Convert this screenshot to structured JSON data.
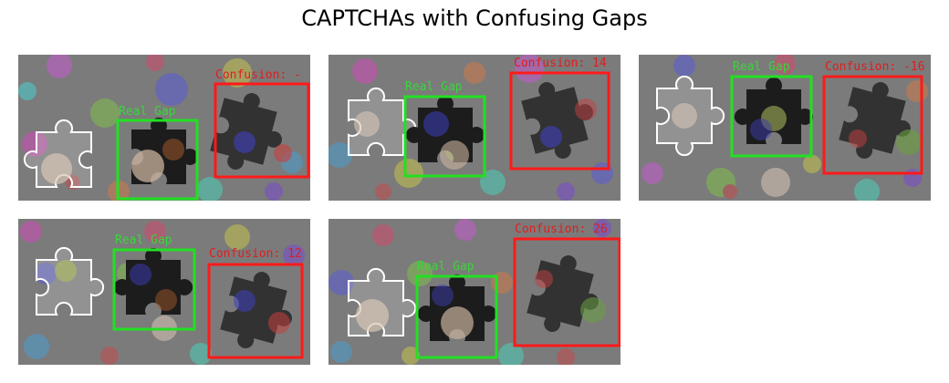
{
  "figure": {
    "title": "CAPTCHAs with Confusing Gaps"
  },
  "colors": {
    "background": "#7b7b7b",
    "real_box": "#22e022",
    "confusion_box": "#ff1a1a",
    "piece_outline": "#ffffff"
  },
  "panels": [
    {
      "real_label": "Real Gap",
      "confusion_label": "Confusion: -"
    },
    {
      "real_label": "Real Gap",
      "confusion_label": "Confusion: 14"
    },
    {
      "real_label": "Real Gap",
      "confusion_label": "Confusion: -16"
    },
    {
      "real_label": "Real Gap",
      "confusion_label": "Confusion: 12"
    },
    {
      "real_label": "Real Gap",
      "confusion_label": "Confusion: 26"
    }
  ]
}
